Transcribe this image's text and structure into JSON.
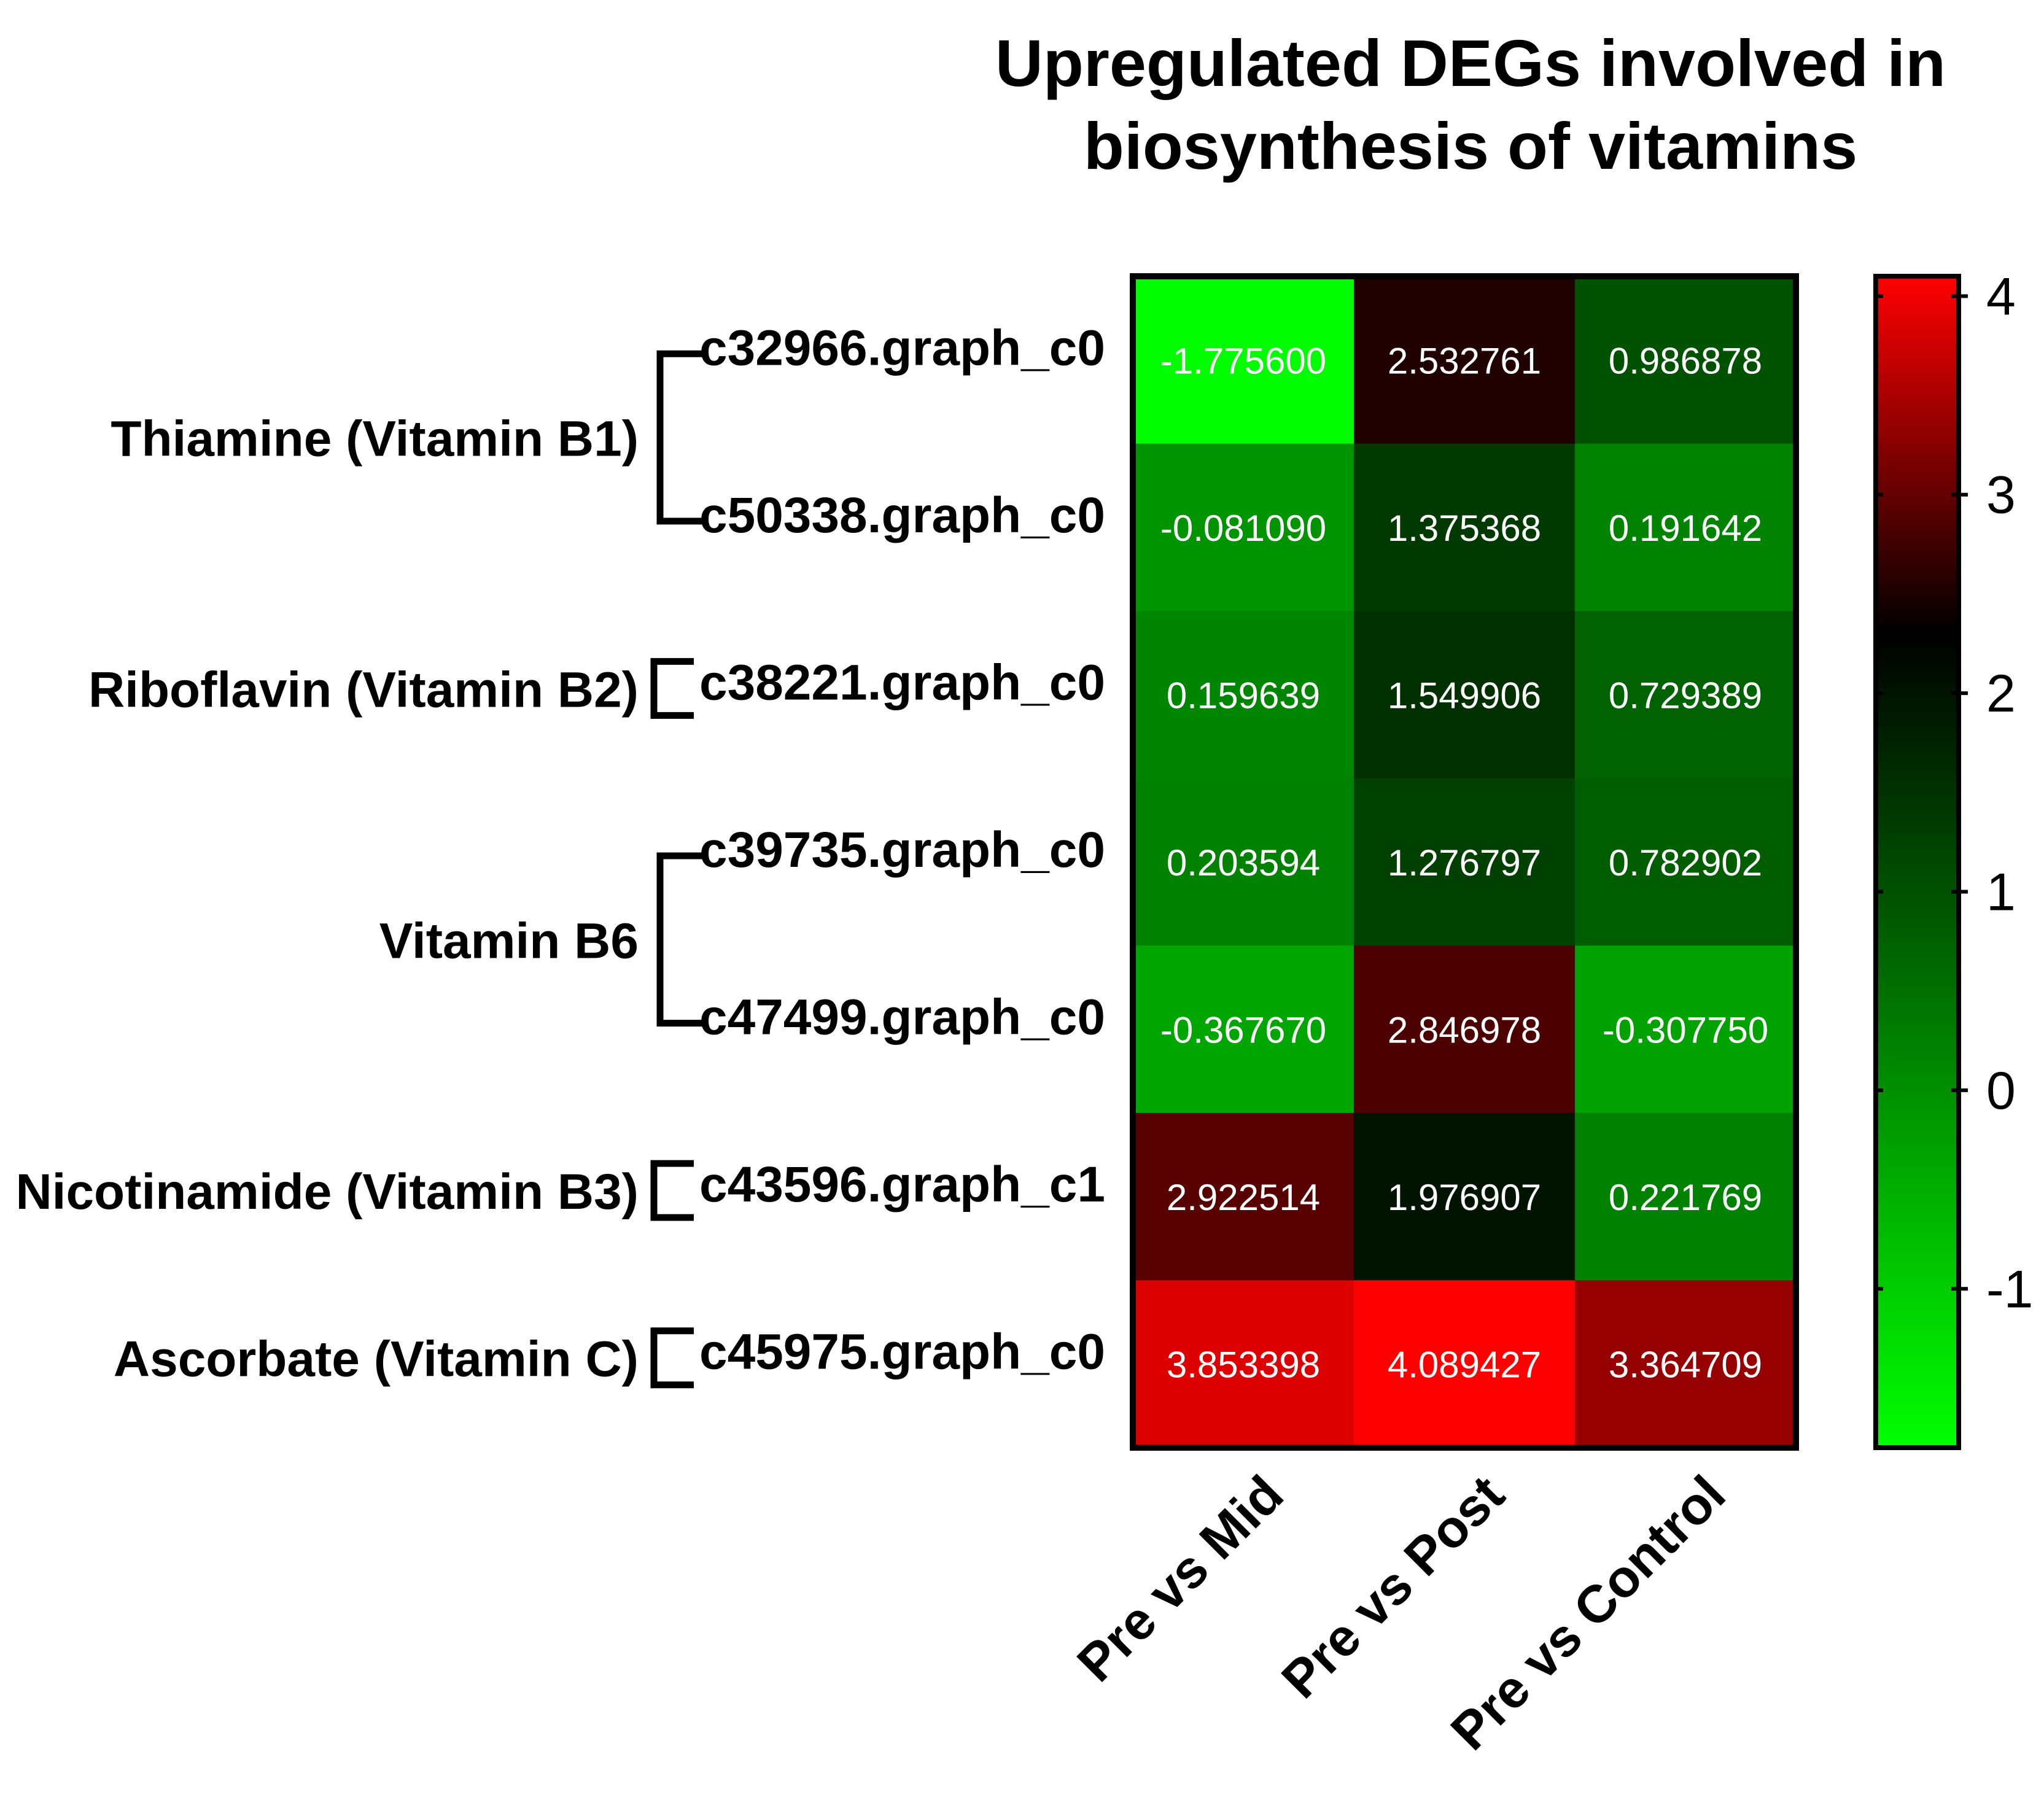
{
  "chart_data": {
    "type": "heatmap",
    "title": [
      "Upregulated DEGs involved in",
      "biosynthesis of vitamins"
    ],
    "columns": [
      "Pre vs Mid",
      "Pre vs Post",
      "Pre vs Control"
    ],
    "rows": [
      "c32966.graph_c0",
      "c50338.graph_c0",
      "c38221.graph_c0",
      "c39735.graph_c0",
      "c47499.graph_c0",
      "c43596.graph_c1",
      "c45975.graph_c0"
    ],
    "values": [
      [
        -1.7756,
        2.532761,
        0.986878
      ],
      [
        -0.08109,
        1.375368,
        0.191642
      ],
      [
        0.159639,
        1.549906,
        0.729389
      ],
      [
        0.203594,
        1.276797,
        0.782902
      ],
      [
        -0.36767,
        2.846978,
        -0.30775
      ],
      [
        2.922514,
        1.976907,
        0.221769
      ],
      [
        3.853398,
        4.089427,
        3.364709
      ]
    ],
    "value_labels": [
      [
        "-1.775600",
        "2.532761",
        "0.986878"
      ],
      [
        "-0.081090",
        "1.375368",
        "0.191642"
      ],
      [
        "0.159639",
        "1.549906",
        "0.729389"
      ],
      [
        "0.203594",
        "1.276797",
        "0.782902"
      ],
      [
        "-0.367670",
        "2.846978",
        "-0.307750"
      ],
      [
        "2.922514",
        "1.976907",
        "0.221769"
      ],
      [
        "3.853398",
        "4.089427",
        "3.364709"
      ]
    ],
    "groups": [
      {
        "label": "Thiamine (Vitamin B1)",
        "rows": [
          0,
          1
        ]
      },
      {
        "label": "Riboflavin (Vitamin B2)",
        "rows": [
          2
        ]
      },
      {
        "label": "Vitamin B6",
        "rows": [
          3,
          4
        ]
      },
      {
        "label": "Nicotinamide (Vitamin B3)",
        "rows": [
          5
        ]
      },
      {
        "label": "Ascorbate (Vitamin C)",
        "rows": [
          6
        ]
      }
    ],
    "colorbar": {
      "min": -1.8,
      "max": 4.1,
      "midpoint": 2.3,
      "ticks": [
        4,
        3,
        2,
        1,
        0,
        -1
      ],
      "tick_labels": [
        "4",
        "3",
        "2",
        "1",
        "0",
        "-1"
      ],
      "low_color": "#00ff00",
      "mid_color": "#000000",
      "high_color": "#ff0000"
    }
  }
}
